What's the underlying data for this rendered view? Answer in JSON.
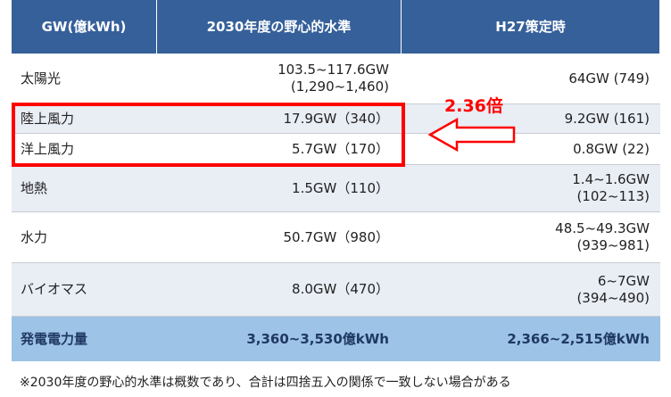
{
  "table": {
    "header": [
      "GW(億kWh)",
      "2030年度の野心的水準",
      "H27策定時"
    ],
    "rows": [
      {
        "label": "太陽光",
        "target": [
          "103.5~117.6GW",
          "(1,290~1,460)"
        ],
        "h27": [
          "64GW (749)"
        ]
      },
      {
        "label": "陸上風力",
        "target": [
          "17.9GW（340）"
        ],
        "h27": [
          "9.2GW (161)"
        ]
      },
      {
        "label": "洋上風力",
        "target": [
          "5.7GW（170）"
        ],
        "h27": [
          "0.8GW (22)"
        ]
      },
      {
        "label": "地熱",
        "target": [
          "1.5GW（110）"
        ],
        "h27": [
          "1.4~1.6GW",
          "(102~113)"
        ]
      },
      {
        "label": "水力",
        "target": [
          "50.7GW（980）"
        ],
        "h27": [
          "48.5~49.3GW",
          "(939~981)"
        ]
      },
      {
        "label": "バイオマス",
        "target": [
          "8.0GW（470）"
        ],
        "h27": [
          "6~7GW",
          "(394~490)"
        ]
      }
    ],
    "total": {
      "label": "発電電力量",
      "target": "3,360~3,530億kWh",
      "h27": "2,366~2,515億kWh"
    }
  },
  "annotation": "2.36倍",
  "footnote": "※2030年度の野心的水準は概数であり、合計は四捨五入の関係で一致しない場合がある"
}
